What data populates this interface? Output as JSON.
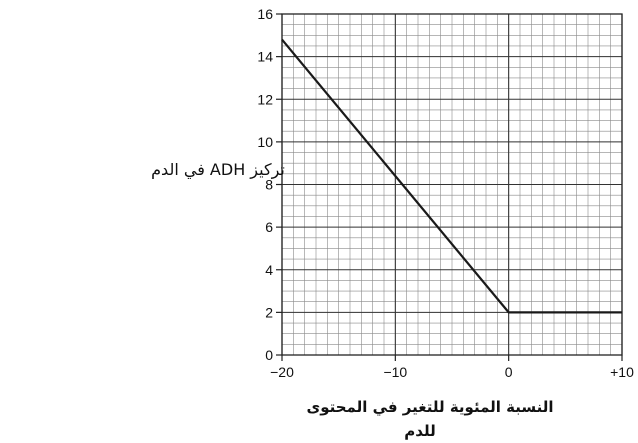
{
  "chart_data": {
    "type": "line",
    "title": "",
    "ylabel": "تركيز ADH في الدم",
    "xlabel_line1": "النسبة المئوية للتغير في المحتوى",
    "xlabel_line2": "للدم",
    "xlim": [
      -20,
      10
    ],
    "ylim": [
      0,
      16
    ],
    "x_ticks": [
      -20,
      -10,
      0,
      10
    ],
    "x_tick_labels": [
      "−20",
      "−10",
      "0",
      "+10"
    ],
    "y_ticks": [
      0,
      2,
      4,
      6,
      8,
      10,
      12,
      14,
      16
    ],
    "y_tick_labels": [
      "0",
      "2",
      "4",
      "6",
      "8",
      "10",
      "12",
      "14",
      "16"
    ],
    "grid": true,
    "minor_grid_step_x": 1,
    "minor_grid_step_y": 0.5,
    "legend": "none",
    "series": [
      {
        "x": [
          -20,
          0,
          10
        ],
        "y": [
          14.8,
          2,
          2
        ]
      }
    ]
  }
}
